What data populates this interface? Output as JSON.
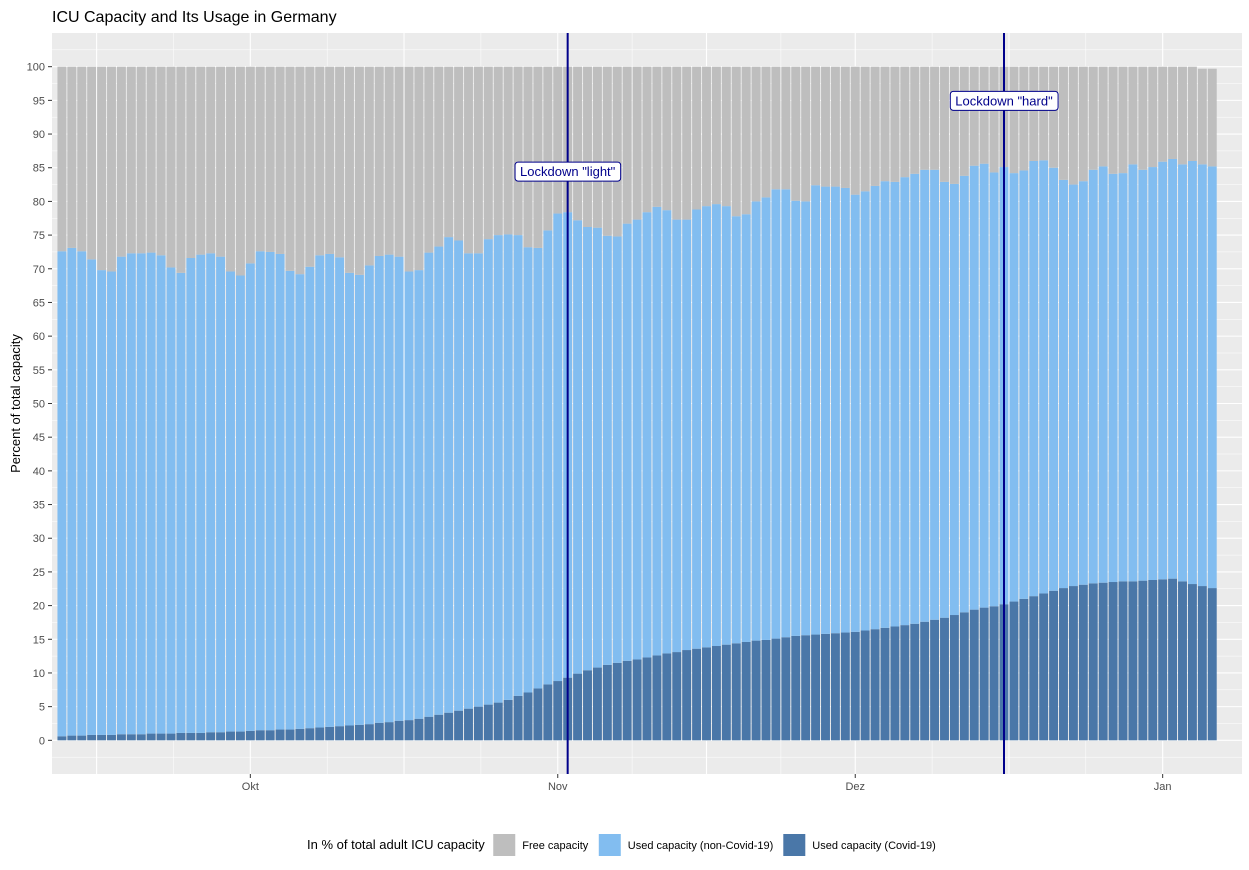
{
  "chart_data": {
    "type": "bar",
    "stacked": true,
    "title": "ICU Capacity and Its Usage in Germany",
    "ylabel": "Percent of total capacity",
    "xlabel": "",
    "ylim": [
      -5,
      105
    ],
    "yticks": [
      0,
      5,
      10,
      15,
      20,
      25,
      30,
      35,
      40,
      45,
      50,
      55,
      60,
      65,
      70,
      75,
      80,
      85,
      90,
      95,
      100
    ],
    "x_start_date": "2020-09-12",
    "x_end_date": "2021-01-05",
    "xlim_dates": [
      "2020-09-11",
      "2021-01-09"
    ],
    "x_ticks": [
      {
        "date": "2020-10-01",
        "label": "Okt"
      },
      {
        "date": "2020-11-01",
        "label": "Nov"
      },
      {
        "date": "2020-12-01",
        "label": "Dez"
      },
      {
        "date": "2021-01-01",
        "label": "Jan"
      }
    ],
    "grid": true,
    "legend_position": "bottom",
    "legend_title": "In % of total adult ICU capacity",
    "series": [
      {
        "name": "Used capacity (Covid-19)",
        "color": "#4a77a8",
        "values": [
          0.6,
          0.7,
          0.7,
          0.8,
          0.8,
          0.8,
          0.9,
          0.9,
          0.9,
          1.0,
          1.0,
          1.0,
          1.1,
          1.1,
          1.1,
          1.2,
          1.2,
          1.3,
          1.3,
          1.4,
          1.5,
          1.5,
          1.6,
          1.6,
          1.7,
          1.8,
          1.9,
          2.0,
          2.1,
          2.2,
          2.3,
          2.4,
          2.6,
          2.7,
          2.9,
          3.0,
          3.2,
          3.5,
          3.8,
          4.1,
          4.4,
          4.7,
          5.0,
          5.3,
          5.6,
          6.0,
          6.6,
          7.1,
          7.7,
          8.3,
          8.8,
          9.3,
          9.9,
          10.4,
          10.8,
          11.2,
          11.5,
          11.8,
          12.0,
          12.3,
          12.6,
          12.9,
          13.1,
          13.4,
          13.6,
          13.8,
          14.0,
          14.2,
          14.4,
          14.6,
          14.8,
          14.9,
          15.1,
          15.3,
          15.5,
          15.6,
          15.7,
          15.8,
          15.9,
          16.0,
          16.1,
          16.3,
          16.5,
          16.7,
          16.9,
          17.1,
          17.3,
          17.6,
          17.9,
          18.2,
          18.6,
          19.0,
          19.4,
          19.7,
          19.9,
          20.2,
          20.6,
          21.0,
          21.4,
          21.8,
          22.2,
          22.6,
          22.9,
          23.1,
          23.3,
          23.4,
          23.5,
          23.6,
          23.6,
          23.7,
          23.8,
          23.9,
          24.0,
          23.6,
          23.2,
          22.9,
          22.6
        ]
      },
      {
        "name": "Used capacity (non-Covid-19)",
        "color": "#82bdf0",
        "values": [
          72.0,
          72.4,
          71.9,
          70.6,
          69.0,
          68.8,
          70.9,
          71.4,
          71.4,
          71.4,
          71.0,
          69.2,
          68.3,
          70.5,
          71.0,
          71.1,
          70.6,
          68.3,
          67.7,
          69.4,
          71.1,
          71.0,
          70.6,
          68.1,
          67.5,
          68.5,
          70.1,
          70.2,
          69.6,
          67.2,
          66.8,
          68.1,
          69.3,
          69.4,
          68.9,
          66.6,
          66.6,
          68.9,
          69.5,
          70.6,
          69.8,
          67.6,
          67.3,
          69.1,
          69.4,
          69.1,
          68.4,
          66.1,
          65.4,
          67.4,
          69.4,
          69.1,
          67.3,
          65.8,
          65.3,
          63.7,
          63.3,
          64.9,
          65.3,
          66.1,
          66.6,
          65.8,
          64.2,
          63.9,
          65.2,
          65.5,
          65.6,
          65.1,
          63.4,
          63.5,
          65.2,
          65.7,
          66.7,
          66.5,
          64.6,
          64.4,
          66.7,
          66.4,
          66.3,
          66.0,
          64.9,
          65.2,
          65.8,
          66.3,
          66.0,
          66.5,
          66.8,
          67.1,
          66.8,
          64.7,
          64.0,
          64.8,
          65.9,
          65.9,
          64.4,
          64.9,
          63.6,
          63.6,
          64.6,
          64.3,
          62.8,
          60.6,
          59.6,
          59.9,
          61.4,
          61.8,
          60.6,
          60.6,
          61.9,
          61.0,
          61.3,
          62.0,
          62.3,
          61.9,
          62.8,
          62.6,
          62.6
        ]
      },
      {
        "name": "Free capacity",
        "color": "#bebebe",
        "values": [
          27.4,
          26.9,
          27.4,
          28.6,
          30.2,
          30.4,
          28.2,
          27.7,
          27.7,
          27.6,
          28.0,
          29.8,
          30.6,
          28.4,
          27.9,
          27.7,
          28.2,
          30.4,
          31.0,
          29.2,
          27.4,
          27.5,
          27.8,
          30.3,
          30.8,
          29.7,
          28.0,
          27.8,
          28.3,
          30.6,
          30.9,
          29.5,
          28.1,
          27.9,
          28.2,
          30.4,
          30.2,
          27.6,
          26.7,
          25.3,
          25.8,
          27.7,
          27.7,
          25.6,
          25.0,
          24.9,
          25.0,
          26.8,
          26.9,
          24.3,
          21.8,
          21.6,
          22.8,
          23.8,
          23.9,
          25.1,
          25.2,
          23.3,
          22.7,
          21.6,
          20.8,
          21.3,
          22.7,
          22.7,
          21.2,
          20.7,
          20.4,
          20.7,
          22.2,
          21.9,
          20.0,
          19.4,
          18.2,
          18.2,
          19.9,
          20.0,
          17.6,
          17.8,
          17.8,
          18.0,
          19.0,
          18.5,
          17.7,
          17.0,
          17.1,
          16.4,
          15.9,
          15.3,
          15.3,
          17.1,
          17.4,
          16.2,
          14.7,
          14.4,
          15.7,
          14.9,
          15.8,
          15.4,
          14.0,
          13.9,
          15.0,
          16.8,
          17.5,
          17.0,
          15.3,
          14.8,
          15.9,
          15.8,
          14.5,
          15.3,
          14.9,
          14.1,
          13.7,
          14.5,
          14.0,
          14.2,
          14.5
        ]
      }
    ],
    "vlines": [
      {
        "date": "2020-11-02",
        "label": "Lockdown \"light\"",
        "label_y": 84.5,
        "color": "#00008b"
      },
      {
        "date": "2020-12-16",
        "label": "Lockdown \"hard\"",
        "label_y": 95,
        "color": "#00008b"
      }
    ]
  }
}
